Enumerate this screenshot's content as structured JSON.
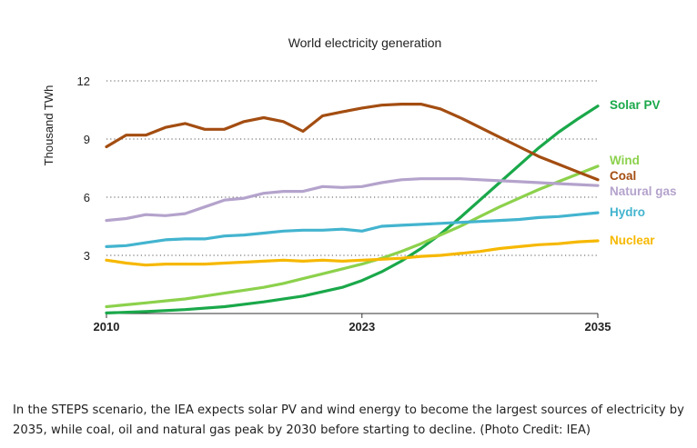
{
  "chart_data": {
    "type": "line",
    "title": "World electricity generation",
    "xlabel": "",
    "ylabel": "Thousand TWh",
    "xlim": [
      2010,
      2035
    ],
    "ylim": [
      0,
      12
    ],
    "yticks": [
      3,
      6,
      9,
      12
    ],
    "xticks": [
      "2010",
      "2023",
      "2035"
    ],
    "xtick_values": [
      2010,
      2023,
      2035
    ],
    "grid": "horizontal-dotted",
    "legend": "right-end-labels",
    "series": [
      {
        "name": "Solar PV",
        "color": "#1aa84a",
        "x": [
          2010,
          2012,
          2014,
          2016,
          2018,
          2020,
          2022,
          2023,
          2024,
          2025,
          2026,
          2027,
          2028,
          2029,
          2030,
          2031,
          2032,
          2033,
          2034,
          2035
        ],
        "y": [
          0.03,
          0.1,
          0.2,
          0.35,
          0.6,
          0.9,
          1.35,
          1.7,
          2.15,
          2.7,
          3.35,
          4.1,
          4.95,
          5.85,
          6.75,
          7.65,
          8.55,
          9.35,
          10.05,
          10.7
        ]
      },
      {
        "name": "Wind",
        "color": "#8cd14c",
        "x": [
          2010,
          2011,
          2012,
          2013,
          2014,
          2015,
          2016,
          2017,
          2018,
          2019,
          2020,
          2021,
          2022,
          2023,
          2024,
          2025,
          2026,
          2027,
          2028,
          2029,
          2030,
          2031,
          2032,
          2033,
          2034,
          2035
        ],
        "y": [
          0.35,
          0.45,
          0.55,
          0.65,
          0.75,
          0.9,
          1.05,
          1.2,
          1.35,
          1.55,
          1.8,
          2.05,
          2.3,
          2.55,
          2.85,
          3.2,
          3.6,
          4.05,
          4.5,
          5.0,
          5.5,
          5.95,
          6.4,
          6.8,
          7.2,
          7.6
        ]
      },
      {
        "name": "Coal",
        "color": "#a34d11",
        "x": [
          2010,
          2011,
          2012,
          2013,
          2014,
          2015,
          2016,
          2017,
          2018,
          2019,
          2020,
          2021,
          2022,
          2023,
          2024,
          2025,
          2026,
          2027,
          2028,
          2029,
          2030,
          2031,
          2032,
          2033,
          2034,
          2035
        ],
        "y": [
          8.6,
          9.2,
          9.2,
          9.6,
          9.8,
          9.5,
          9.5,
          9.9,
          10.1,
          9.9,
          9.4,
          10.2,
          10.4,
          10.6,
          10.75,
          10.8,
          10.8,
          10.55,
          10.1,
          9.6,
          9.1,
          8.6,
          8.1,
          7.7,
          7.3,
          6.9
        ]
      },
      {
        "name": "Natural gas",
        "color": "#b4a3cc",
        "x": [
          2010,
          2011,
          2012,
          2013,
          2014,
          2015,
          2016,
          2017,
          2018,
          2019,
          2020,
          2021,
          2022,
          2023,
          2024,
          2025,
          2026,
          2027,
          2028,
          2029,
          2030,
          2031,
          2032,
          2033,
          2034,
          2035
        ],
        "y": [
          4.8,
          4.9,
          5.1,
          5.05,
          5.15,
          5.5,
          5.85,
          5.95,
          6.2,
          6.3,
          6.3,
          6.55,
          6.5,
          6.55,
          6.75,
          6.9,
          6.95,
          6.95,
          6.95,
          6.9,
          6.85,
          6.8,
          6.75,
          6.7,
          6.65,
          6.6
        ]
      },
      {
        "name": "Hydro",
        "color": "#43b4cf",
        "x": [
          2010,
          2011,
          2012,
          2013,
          2014,
          2015,
          2016,
          2017,
          2018,
          2019,
          2020,
          2021,
          2022,
          2023,
          2024,
          2025,
          2026,
          2027,
          2028,
          2029,
          2030,
          2031,
          2032,
          2033,
          2034,
          2035
        ],
        "y": [
          3.45,
          3.5,
          3.65,
          3.8,
          3.85,
          3.85,
          4.0,
          4.05,
          4.15,
          4.25,
          4.3,
          4.3,
          4.35,
          4.25,
          4.5,
          4.55,
          4.6,
          4.65,
          4.7,
          4.75,
          4.8,
          4.85,
          4.95,
          5.0,
          5.1,
          5.2
        ]
      },
      {
        "name": "Nuclear",
        "color": "#f6b800",
        "x": [
          2010,
          2011,
          2012,
          2013,
          2014,
          2015,
          2016,
          2017,
          2018,
          2019,
          2020,
          2021,
          2022,
          2023,
          2024,
          2025,
          2026,
          2027,
          2028,
          2029,
          2030,
          2031,
          2032,
          2033,
          2034,
          2035
        ],
        "y": [
          2.75,
          2.6,
          2.5,
          2.55,
          2.55,
          2.55,
          2.6,
          2.65,
          2.7,
          2.75,
          2.7,
          2.75,
          2.7,
          2.75,
          2.8,
          2.85,
          2.95,
          3.0,
          3.1,
          3.2,
          3.35,
          3.45,
          3.55,
          3.6,
          3.7,
          3.75
        ]
      }
    ]
  },
  "caption": "In the STEPS scenario, the IEA expects solar PV and wind energy to become the largest sources of electricity by 2035, while coal, oil and natural gas peak by 2030 before starting to decline. (Photo Credit: IEA)"
}
